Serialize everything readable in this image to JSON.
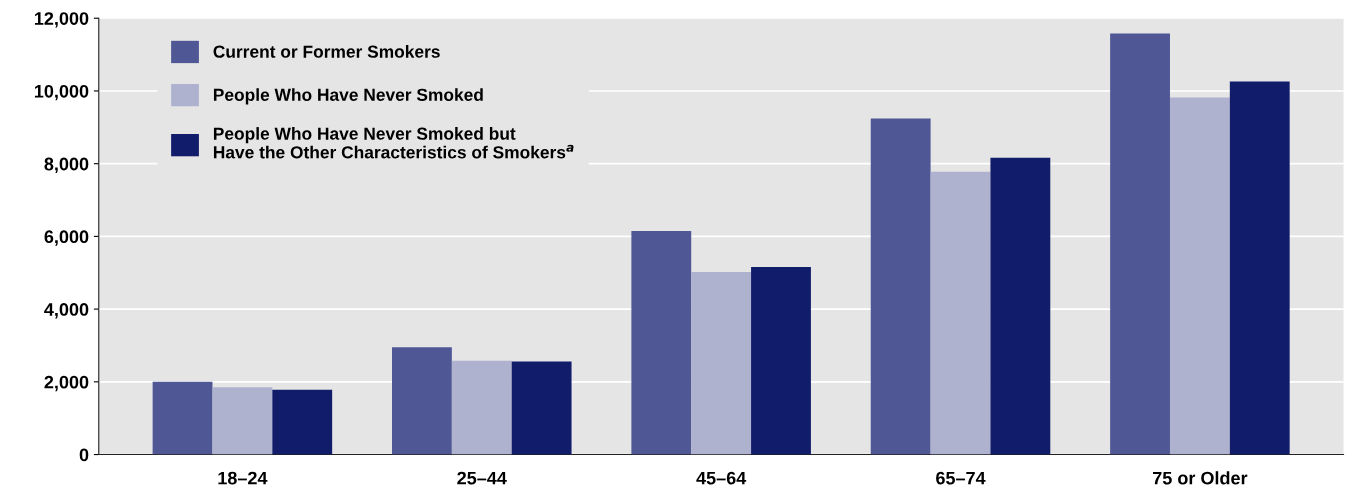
{
  "chart_data": {
    "type": "bar",
    "categories": [
      "18–24",
      "25–44",
      "45–64",
      "65–74",
      "75 or Older"
    ],
    "series": [
      {
        "name": "Current or Former Smokers",
        "color": "#4f5795",
        "values": [
          2000,
          2950,
          6150,
          9240,
          11580
        ]
      },
      {
        "name": "People Who Have Never Smoked",
        "color": "#aeb2cf",
        "values": [
          1850,
          2580,
          5020,
          7780,
          9820
        ]
      },
      {
        "name": "People Who Have Never Smoked but\nHave the Other Characteristics of Smokers$^{a}$",
        "color": "#111c6a",
        "values": [
          1780,
          2560,
          5160,
          8160,
          10260
        ]
      }
    ],
    "ylim": [
      0,
      12000
    ],
    "yticks": [
      {
        "value": 0,
        "label": "0"
      },
      {
        "value": 2000,
        "label": "2,000"
      },
      {
        "value": 4000,
        "label": "4,000"
      },
      {
        "value": 6000,
        "label": "6,000"
      },
      {
        "value": 8000,
        "label": "8,000"
      },
      {
        "value": 10000,
        "label": "10,000"
      },
      {
        "value": 12000,
        "label": "12,000"
      }
    ],
    "grid": "y",
    "legend": "top left"
  }
}
